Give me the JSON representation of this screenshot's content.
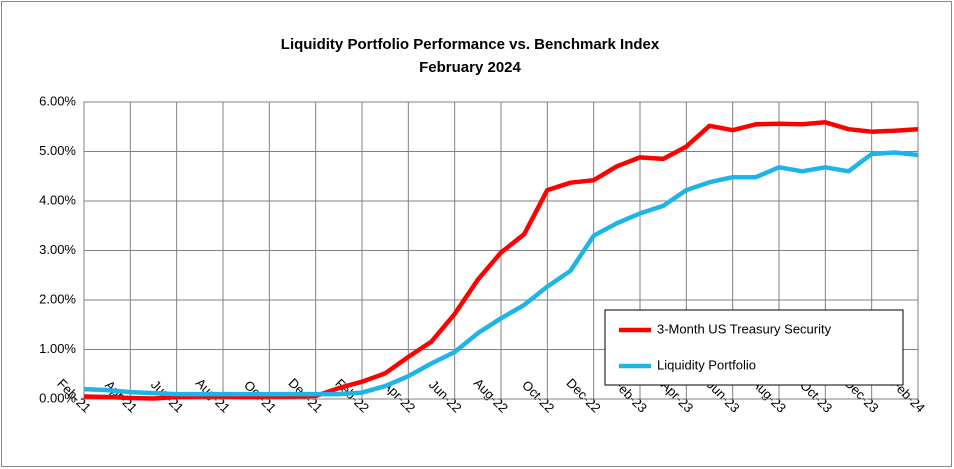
{
  "chart_data": {
    "type": "line",
    "title": "Liquidity Portfolio Performance vs. Benchmark Index",
    "subtitle": "February 2024",
    "categories": [
      "Feb-21",
      null,
      "Apr-21",
      null,
      "Jun-21",
      null,
      "Aug-21",
      null,
      "Oct-21",
      null,
      "Dec-21",
      null,
      "Feb-22",
      null,
      "Apr-22",
      null,
      "Jun-22",
      null,
      "Aug-22",
      null,
      "Oct-22",
      null,
      "Dec-22",
      null,
      "Feb-23",
      null,
      "Apr-23",
      null,
      "Jun-23",
      null,
      "Aug-23",
      null,
      "Oct-23",
      null,
      "Dec-23",
      null,
      "Feb-24"
    ],
    "series": [
      {
        "name": "3-Month US Treasury Security",
        "color": "#ff0000",
        "values": [
          0.05,
          0.04,
          0.02,
          0.01,
          0.04,
          0.05,
          0.05,
          0.04,
          0.05,
          0.05,
          0.06,
          0.22,
          0.35,
          0.52,
          0.85,
          1.16,
          1.72,
          2.41,
          2.96,
          3.33,
          4.22,
          4.37,
          4.42,
          4.7,
          4.88,
          4.85,
          5.1,
          5.52,
          5.43,
          5.55,
          5.56,
          5.55,
          5.59,
          5.45,
          5.4,
          5.42,
          5.45
        ]
      },
      {
        "name": "Liquidity Portfolio",
        "color": "#1fb4e8",
        "values": [
          0.2,
          0.18,
          0.14,
          0.12,
          0.1,
          0.1,
          0.1,
          0.1,
          0.1,
          0.1,
          0.1,
          0.1,
          0.13,
          0.26,
          0.46,
          0.72,
          0.95,
          1.33,
          1.63,
          1.9,
          2.27,
          2.59,
          3.3,
          3.55,
          3.75,
          3.9,
          4.22,
          4.38,
          4.48,
          4.48,
          4.68,
          4.6,
          4.68,
          4.6,
          4.95,
          4.98,
          4.93
        ]
      }
    ],
    "ylim": [
      0,
      6
    ],
    "yticks": [
      {
        "value": 0,
        "label": "0.00%"
      },
      {
        "value": 1,
        "label": "1.00%"
      },
      {
        "value": 2,
        "label": "2.00%"
      },
      {
        "value": 3,
        "label": "3.00%"
      },
      {
        "value": 4,
        "label": "4.00%"
      },
      {
        "value": 5,
        "label": "5.00%"
      },
      {
        "value": 6,
        "label": "6.00%"
      }
    ],
    "grid": true,
    "legend": "lower right"
  }
}
